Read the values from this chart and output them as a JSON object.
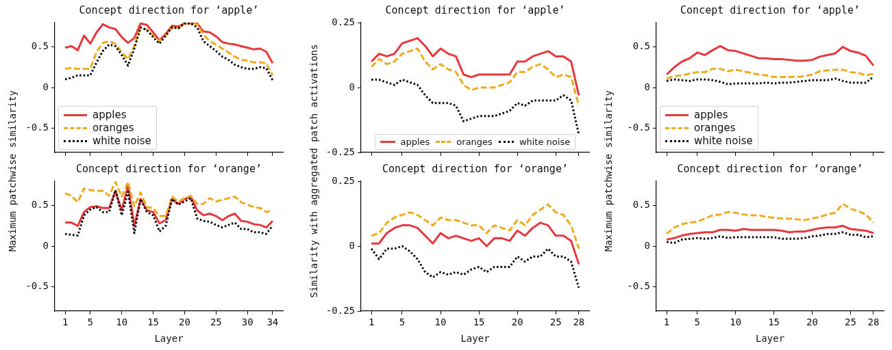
{
  "chart_data": [
    {
      "type": "line",
      "title": "Concept direction for ‘apple’",
      "ylabel": "Maximum patchwise similarity",
      "x": [
        1,
        2,
        3,
        4,
        5,
        6,
        7,
        8,
        9,
        10,
        11,
        12,
        13,
        14,
        15,
        16,
        17,
        18,
        19,
        20,
        21,
        22,
        23,
        24,
        25,
        26,
        27,
        28,
        29,
        30,
        31,
        32,
        33,
        34
      ],
      "xlim": [
        -0.65,
        35.65
      ],
      "xticks": [
        1,
        5,
        10,
        15,
        20,
        25,
        30,
        34
      ],
      "ylim": [
        -0.8,
        0.8
      ],
      "yticks": [
        -0.5,
        0,
        0.5
      ],
      "tick_labels": "y",
      "legend": "bottom left",
      "series": [
        {
          "name": "apples",
          "color": "#e8383d",
          "line_style": "solid",
          "values": [
            0.49,
            0.51,
            0.46,
            0.64,
            0.54,
            0.68,
            0.78,
            0.74,
            0.72,
            0.62,
            0.55,
            0.61,
            0.79,
            0.77,
            0.68,
            0.58,
            0.66,
            0.76,
            0.75,
            0.79,
            0.79,
            0.79,
            0.69,
            0.68,
            0.63,
            0.56,
            0.54,
            0.53,
            0.51,
            0.49,
            0.47,
            0.48,
            0.44,
            0.3
          ]
        },
        {
          "name": "oranges",
          "color": "#f0aa1e",
          "line_style": "dashed",
          "values": [
            0.23,
            0.24,
            0.23,
            0.23,
            0.23,
            0.44,
            0.55,
            0.57,
            0.54,
            0.43,
            0.35,
            0.51,
            0.74,
            0.71,
            0.64,
            0.57,
            0.64,
            0.74,
            0.73,
            0.79,
            0.79,
            0.78,
            0.65,
            0.57,
            0.53,
            0.48,
            0.43,
            0.38,
            0.34,
            0.33,
            0.31,
            0.31,
            0.3,
            0.15
          ]
        },
        {
          "name": "white noise",
          "color": "#000000",
          "line_style": "dotted",
          "values": [
            0.1,
            0.12,
            0.15,
            0.15,
            0.15,
            0.31,
            0.45,
            0.53,
            0.51,
            0.4,
            0.27,
            0.48,
            0.74,
            0.71,
            0.62,
            0.54,
            0.64,
            0.74,
            0.73,
            0.79,
            0.79,
            0.74,
            0.57,
            0.51,
            0.45,
            0.38,
            0.34,
            0.28,
            0.25,
            0.23,
            0.23,
            0.25,
            0.24,
            0.09
          ]
        }
      ]
    },
    {
      "type": "line",
      "title": "Concept direction for ‘apple’",
      "ylabel": "Similarity with aggregated patch activations",
      "x": [
        1,
        2,
        3,
        4,
        5,
        6,
        7,
        8,
        9,
        10,
        11,
        12,
        13,
        14,
        15,
        16,
        17,
        18,
        19,
        20,
        21,
        22,
        23,
        24,
        25,
        26,
        27,
        28
      ],
      "xlim": [
        -0.35,
        29.35
      ],
      "xticks": [
        1,
        5,
        10,
        15,
        20,
        25,
        28
      ],
      "ylim": [
        -0.25,
        0.25
      ],
      "yticks": [
        -0.25,
        0,
        0.25
      ],
      "tick_labels": "y",
      "legend": "bottom",
      "series": [
        {
          "name": "apples",
          "color": "#e8383d",
          "line_style": "solid",
          "values": [
            0.1,
            0.13,
            0.12,
            0.13,
            0.17,
            0.18,
            0.19,
            0.16,
            0.12,
            0.15,
            0.13,
            0.12,
            0.05,
            0.04,
            0.05,
            0.05,
            0.05,
            0.05,
            0.05,
            0.1,
            0.1,
            0.12,
            0.13,
            0.14,
            0.12,
            0.12,
            0.1,
            -0.03
          ]
        },
        {
          "name": "oranges",
          "color": "#f0aa1e",
          "line_style": "dashed",
          "values": [
            0.08,
            0.11,
            0.09,
            0.1,
            0.13,
            0.14,
            0.15,
            0.1,
            0.07,
            0.09,
            0.07,
            0.06,
            0.01,
            -0.01,
            0,
            0,
            0,
            0.01,
            0.02,
            0.06,
            0.06,
            0.08,
            0.09,
            0.07,
            0.04,
            0.05,
            0.04,
            -0.07
          ]
        },
        {
          "name": "white noise",
          "color": "#000000",
          "line_style": "dotted",
          "values": [
            0.03,
            0.03,
            0.02,
            0.01,
            0.03,
            0.02,
            0.01,
            -0.03,
            -0.06,
            -0.06,
            -0.06,
            -0.07,
            -0.13,
            -0.12,
            -0.11,
            -0.11,
            -0.11,
            -0.1,
            -0.09,
            -0.06,
            -0.07,
            -0.05,
            -0.05,
            -0.05,
            -0.05,
            -0.03,
            -0.05,
            -0.18
          ]
        }
      ]
    },
    {
      "type": "line",
      "title": "Concept direction for ‘apple’",
      "ylabel": "Maximum patchwise similarity",
      "x": [
        1,
        2,
        3,
        4,
        5,
        6,
        7,
        8,
        9,
        10,
        11,
        12,
        13,
        14,
        15,
        16,
        17,
        18,
        19,
        20,
        21,
        22,
        23,
        24,
        25,
        26,
        27,
        28
      ],
      "xlim": [
        -0.35,
        29.35
      ],
      "xticks": [
        1,
        5,
        10,
        15,
        20,
        25,
        28
      ],
      "ylim": [
        -0.8,
        0.8
      ],
      "yticks": [
        -0.5,
        0,
        0.5
      ],
      "tick_labels": "y",
      "legend": "bottom left",
      "series": [
        {
          "name": "apples",
          "color": "#e8383d",
          "line_style": "solid",
          "values": [
            0.16,
            0.25,
            0.32,
            0.36,
            0.43,
            0.4,
            0.46,
            0.51,
            0.46,
            0.45,
            0.42,
            0.39,
            0.36,
            0.36,
            0.35,
            0.35,
            0.34,
            0.33,
            0.33,
            0.34,
            0.38,
            0.4,
            0.42,
            0.5,
            0.45,
            0.43,
            0.39,
            0.27
          ]
        },
        {
          "name": "oranges",
          "color": "#f0aa1e",
          "line_style": "dashed",
          "values": [
            0.11,
            0.14,
            0.15,
            0.17,
            0.19,
            0.19,
            0.23,
            0.23,
            0.2,
            0.22,
            0.2,
            0.18,
            0.16,
            0.15,
            0.13,
            0.13,
            0.13,
            0.13,
            0.14,
            0.16,
            0.2,
            0.21,
            0.22,
            0.22,
            0.19,
            0.18,
            0.15,
            0.17
          ]
        },
        {
          "name": "white noise",
          "color": "#000000",
          "line_style": "dotted",
          "values": [
            0.08,
            0.1,
            0.09,
            0.08,
            0.1,
            0.1,
            0.09,
            0.07,
            0.04,
            0.05,
            0.05,
            0.05,
            0.05,
            0.06,
            0.05,
            0.06,
            0.06,
            0.07,
            0.08,
            0.09,
            0.09,
            0.09,
            0.11,
            0.08,
            0.06,
            0.06,
            0.06,
            0.13
          ]
        }
      ]
    },
    {
      "type": "line",
      "title": "Concept direction for ‘orange’",
      "xlabel": "Layer",
      "x": [
        1,
        2,
        3,
        4,
        5,
        6,
        7,
        8,
        9,
        10,
        11,
        12,
        13,
        14,
        15,
        16,
        17,
        18,
        19,
        20,
        21,
        22,
        23,
        24,
        25,
        26,
        27,
        28,
        29,
        30,
        31,
        32,
        33,
        34
      ],
      "xlim": [
        -0.65,
        35.65
      ],
      "xticks": [
        1,
        5,
        10,
        15,
        20,
        25,
        30,
        34
      ],
      "ylim": [
        -0.8,
        0.8
      ],
      "yticks": [
        -0.5,
        0,
        0.5
      ],
      "series": [
        {
          "color": "#e8383d",
          "line_style": "solid",
          "values": [
            0.29,
            0.29,
            0.25,
            0.42,
            0.48,
            0.49,
            0.47,
            0.47,
            0.68,
            0.44,
            0.75,
            0.25,
            0.58,
            0.44,
            0.42,
            0.28,
            0.32,
            0.58,
            0.52,
            0.58,
            0.61,
            0.44,
            0.38,
            0.4,
            0.37,
            0.32,
            0.37,
            0.4,
            0.31,
            0.3,
            0.27,
            0.26,
            0.23,
            0.31
          ]
        },
        {
          "color": "#f0aa1e",
          "line_style": "dashed",
          "values": [
            0.65,
            0.62,
            0.54,
            0.71,
            0.69,
            0.68,
            0.68,
            0.62,
            0.79,
            0.61,
            0.79,
            0.49,
            0.66,
            0.48,
            0.47,
            0.37,
            0.37,
            0.61,
            0.55,
            0.59,
            0.62,
            0.52,
            0.52,
            0.59,
            0.55,
            0.57,
            0.59,
            0.61,
            0.54,
            0.51,
            0.48,
            0.47,
            0.42,
            0.44
          ]
        },
        {
          "color": "#000000",
          "line_style": "dotted",
          "values": [
            0.15,
            0.14,
            0.13,
            0.38,
            0.45,
            0.48,
            0.42,
            0.42,
            0.69,
            0.38,
            0.67,
            0.16,
            0.58,
            0.42,
            0.38,
            0.18,
            0.25,
            0.58,
            0.51,
            0.55,
            0.59,
            0.34,
            0.31,
            0.3,
            0.26,
            0.23,
            0.26,
            0.29,
            0.21,
            0.21,
            0.17,
            0.17,
            0.15,
            0.25
          ]
        }
      ]
    },
    {
      "type": "line",
      "title": "Concept direction for ‘orange’",
      "xlabel": "Layer",
      "x": [
        1,
        2,
        3,
        4,
        5,
        6,
        7,
        8,
        9,
        10,
        11,
        12,
        13,
        14,
        15,
        16,
        17,
        18,
        19,
        20,
        21,
        22,
        23,
        24,
        25,
        26,
        27,
        28
      ],
      "xlim": [
        -0.35,
        29.35
      ],
      "xticks": [
        1,
        5,
        10,
        15,
        20,
        25,
        28
      ],
      "ylim": [
        -0.25,
        0.25
      ],
      "yticks": [
        -0.25,
        0,
        0.25
      ],
      "series": [
        {
          "color": "#e8383d",
          "line_style": "solid",
          "values": [
            0.01,
            0.01,
            0.05,
            0.07,
            0.08,
            0.08,
            0.07,
            0.04,
            0.01,
            0.05,
            0.03,
            0.04,
            0.03,
            0.02,
            0.03,
            0,
            0.03,
            0.03,
            0.02,
            0.06,
            0.04,
            0.07,
            0.09,
            0.08,
            0.04,
            0.04,
            0.02,
            -0.07
          ]
        },
        {
          "color": "#f0aa1e",
          "line_style": "dashed",
          "values": [
            0.04,
            0.05,
            0.09,
            0.11,
            0.12,
            0.13,
            0.12,
            0.1,
            0.08,
            0.11,
            0.1,
            0.1,
            0.09,
            0.08,
            0.08,
            0.05,
            0.08,
            0.07,
            0.06,
            0.1,
            0.08,
            0.12,
            0.14,
            0.16,
            0.13,
            0.12,
            0.08,
            -0.01
          ]
        },
        {
          "color": "#000000",
          "line_style": "dotted",
          "values": [
            -0.01,
            -0.05,
            -0.01,
            -0.01,
            0,
            -0.02,
            -0.05,
            -0.1,
            -0.12,
            -0.1,
            -0.11,
            -0.1,
            -0.11,
            -0.09,
            -0.08,
            -0.1,
            -0.08,
            -0.08,
            -0.08,
            -0.04,
            -0.06,
            -0.04,
            -0.04,
            -0.01,
            -0.04,
            -0.04,
            -0.06,
            -0.16
          ]
        }
      ]
    },
    {
      "type": "line",
      "title": "Concept direction for ‘orange’",
      "xlabel": "Layer",
      "x": [
        1,
        2,
        3,
        4,
        5,
        6,
        7,
        8,
        9,
        10,
        11,
        12,
        13,
        14,
        15,
        16,
        17,
        18,
        19,
        20,
        21,
        22,
        23,
        24,
        25,
        26,
        27,
        28
      ],
      "xlim": [
        -0.35,
        29.35
      ],
      "xticks": [
        1,
        5,
        10,
        15,
        20,
        25,
        28
      ],
      "ylim": [
        -0.8,
        0.8
      ],
      "yticks": [
        -0.5,
        0,
        0.5
      ],
      "series": [
        {
          "color": "#e8383d",
          "line_style": "solid",
          "values": [
            0.08,
            0.1,
            0.13,
            0.15,
            0.16,
            0.17,
            0.17,
            0.2,
            0.2,
            0.19,
            0.21,
            0.2,
            0.2,
            0.2,
            0.2,
            0.19,
            0.17,
            0.18,
            0.18,
            0.2,
            0.22,
            0.23,
            0.23,
            0.25,
            0.21,
            0.2,
            0.19,
            0.16
          ]
        },
        {
          "color": "#f0aa1e",
          "line_style": "dashed",
          "values": [
            0.15,
            0.23,
            0.27,
            0.29,
            0.3,
            0.34,
            0.38,
            0.39,
            0.42,
            0.41,
            0.39,
            0.38,
            0.38,
            0.36,
            0.35,
            0.34,
            0.34,
            0.33,
            0.32,
            0.34,
            0.36,
            0.39,
            0.41,
            0.52,
            0.46,
            0.43,
            0.39,
            0.29
          ]
        },
        {
          "color": "#000000",
          "line_style": "dotted",
          "values": [
            0.05,
            0.04,
            0.08,
            0.09,
            0.1,
            0.09,
            0.1,
            0.12,
            0.1,
            0.11,
            0.11,
            0.11,
            0.11,
            0.11,
            0.11,
            0.09,
            0.09,
            0.09,
            0.1,
            0.12,
            0.13,
            0.15,
            0.15,
            0.17,
            0.14,
            0.14,
            0.11,
            0.12
          ]
        }
      ]
    }
  ]
}
